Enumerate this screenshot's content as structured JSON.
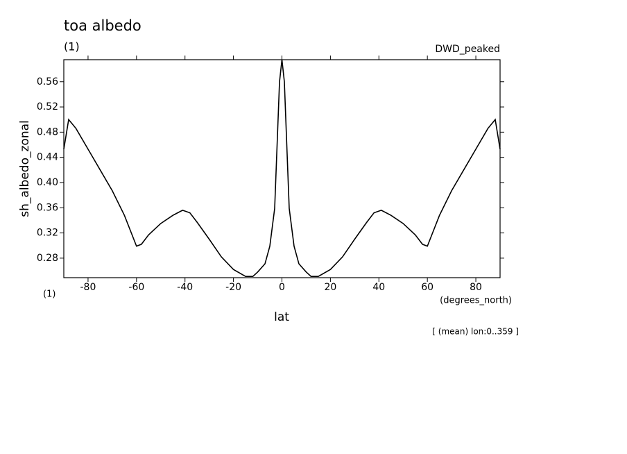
{
  "chart_data": {
    "type": "line",
    "title": "toa albedo",
    "subtitle": "(1)",
    "dataset": "DWD_peaked",
    "y_label": "sh_albedo_zonal",
    "y_units": "(1)",
    "x_label": "lat",
    "x_units": "(degrees_north)",
    "note": "[ (mean) lon:0..359 ]",
    "color": "#000000",
    "x": [
      -90,
      -88,
      -85,
      -80,
      -75,
      -70,
      -65,
      -60,
      -58,
      -55,
      -50,
      -45,
      -41,
      -38,
      -35,
      -30,
      -25,
      -20,
      -15,
      -12,
      -10,
      -7,
      -5,
      -3,
      -1,
      0,
      1,
      3,
      5,
      7,
      10,
      12,
      15,
      20,
      25,
      30,
      35,
      38,
      41,
      45,
      50,
      55,
      58,
      60,
      65,
      70,
      75,
      80,
      85,
      88,
      90
    ],
    "values": [
      0.453,
      0.5,
      0.486,
      0.453,
      0.42,
      0.387,
      0.348,
      0.299,
      0.302,
      0.317,
      0.335,
      0.348,
      0.356,
      0.352,
      0.337,
      0.31,
      0.282,
      0.262,
      0.251,
      0.251,
      0.258,
      0.271,
      0.299,
      0.359,
      0.56,
      0.595,
      0.56,
      0.359,
      0.299,
      0.271,
      0.258,
      0.251,
      0.251,
      0.262,
      0.282,
      0.31,
      0.337,
      0.352,
      0.356,
      0.348,
      0.335,
      0.317,
      0.302,
      0.299,
      0.348,
      0.387,
      0.42,
      0.453,
      0.486,
      0.5,
      0.453
    ],
    "xlim": [
      -90,
      90
    ],
    "xticks": [
      -80,
      -60,
      -40,
      -20,
      0,
      20,
      40,
      60,
      80
    ],
    "ylim": [
      0.249,
      0.595
    ],
    "yticks": [
      0.28,
      0.32,
      0.36,
      {
        "value": 0.4,
        "label": "0.40"
      },
      0.44,
      0.48,
      0.52,
      0.56
    ]
  }
}
